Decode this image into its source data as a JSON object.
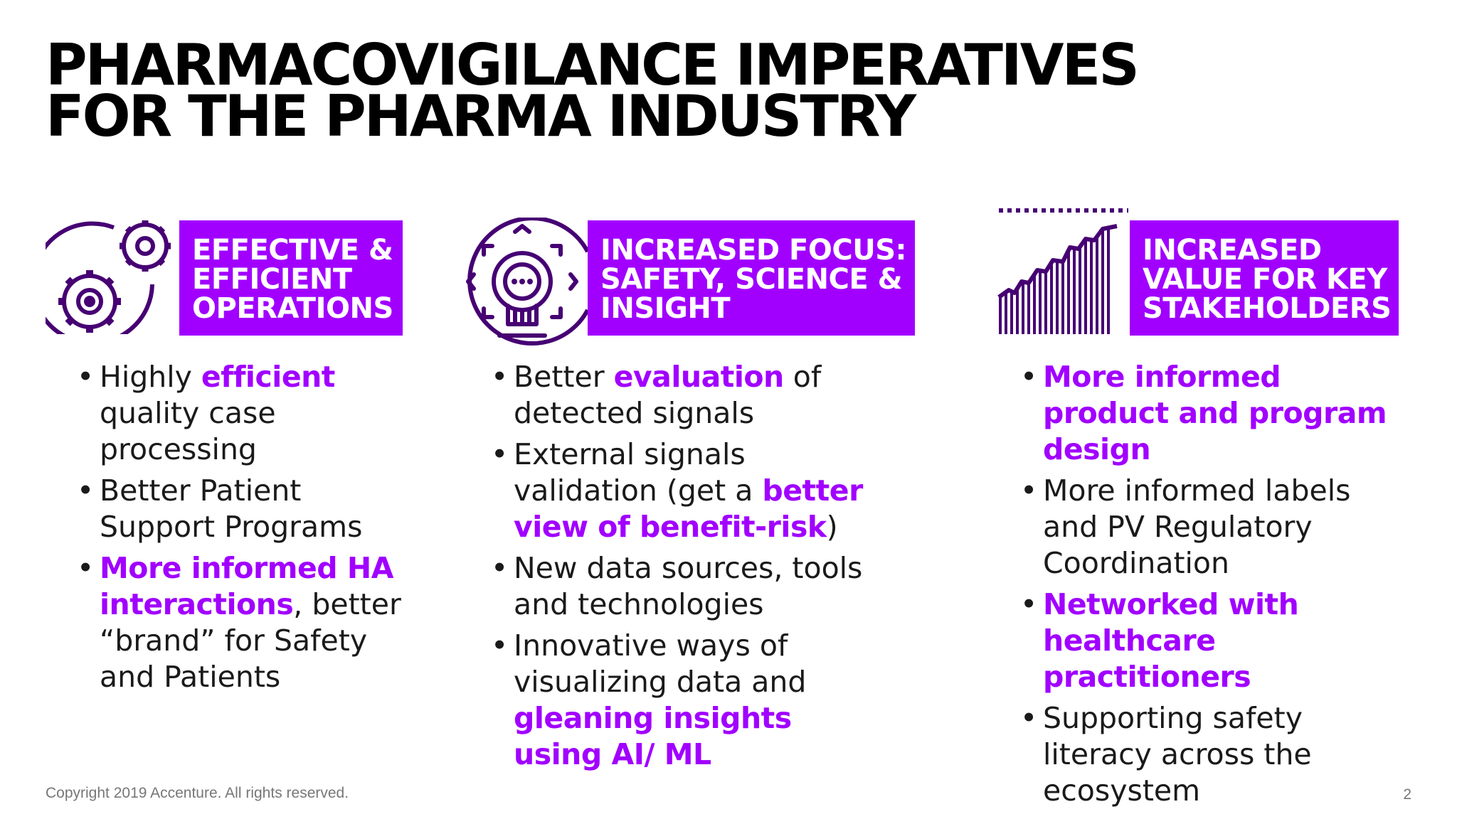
{
  "title": {
    "line1": "PHARMACOVIGILANCE IMPERATIVES",
    "line2": "FOR THE PHARMA INDUSTRY"
  },
  "accent_color": "#a100ff",
  "columns": [
    {
      "icon": "gears-icon",
      "heading": [
        "EFFECTIVE &",
        "EFFICIENT",
        "OPERATIONS"
      ],
      "bullets": [
        [
          {
            "t": "Highly "
          },
          {
            "t": "efficient",
            "h": true
          },
          {
            "t": " quality case processing"
          }
        ],
        [
          {
            "t": "Better Patient Support Programs"
          }
        ],
        [
          {
            "t": "More informed HA interactions",
            "h": true
          },
          {
            "t": ", better “brand” for Safety and Patients"
          }
        ]
      ]
    },
    {
      "icon": "lightbulb-focus-icon",
      "heading": [
        "INCREASED FOCUS:",
        "SAFETY, SCIENCE &",
        "INSIGHT"
      ],
      "bullets": [
        [
          {
            "t": "Better "
          },
          {
            "t": "evaluation",
            "h": true
          },
          {
            "t": " of detected signals"
          }
        ],
        [
          {
            "t": "External signals validation (get a "
          },
          {
            "t": "better view of benefit-risk",
            "h": true
          },
          {
            "t": ")"
          }
        ],
        [
          {
            "t": "New data sources, tools and technologies"
          }
        ],
        [
          {
            "t": "Innovative ways of visualizing data and "
          },
          {
            "t": "gleaning insights using AI/ ML",
            "h": true
          }
        ]
      ]
    },
    {
      "icon": "growth-bar-chart-icon",
      "heading": [
        "INCREASED",
        "VALUE FOR KEY",
        "STAKEHOLDERS"
      ],
      "bullets": [
        [
          {
            "t": "More informed product and program design",
            "h": true
          }
        ],
        [
          {
            "t": "More informed labels and PV Regulatory Coordination"
          }
        ],
        [
          {
            "t": "Networked with healthcare practitioners",
            "h": true
          }
        ],
        [
          {
            "t": "Supporting safety literacy across the ecosystem"
          }
        ]
      ]
    }
  ],
  "footer": {
    "copyright": "Copyright 2019 Accenture. All rights reserved.",
    "page_number": "2"
  }
}
